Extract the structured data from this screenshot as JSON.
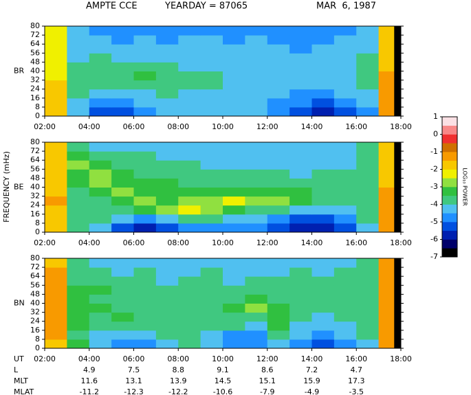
{
  "header": {
    "mission": "AMPTE CCE",
    "yearday": "YEARDAY = 87065",
    "date": "MAR  6, 1987"
  },
  "ylabel": "FREQUENCY (mHz)",
  "chart_data": [
    {
      "type": "heatmap",
      "label": "BR",
      "xlim": [
        2,
        18
      ],
      "ylim": [
        0,
        80
      ],
      "xticks": [
        {
          "value": 2,
          "label": "02:00"
        },
        {
          "value": 4,
          "label": "04:00"
        },
        {
          "value": 6,
          "label": "06:00"
        },
        {
          "value": 8,
          "label": "08:00"
        },
        {
          "value": 10,
          "label": "10:00"
        },
        {
          "value": 12,
          "label": "12:00"
        },
        {
          "value": 14,
          "label": "14:00"
        },
        {
          "value": 16,
          "label": "16:00"
        },
        {
          "value": 18,
          "label": "18:00"
        }
      ],
      "yticks": [
        0,
        8,
        16,
        24,
        32,
        40,
        48,
        56,
        64,
        72,
        80
      ],
      "z": [
        [
          -2,
          -4.5,
          -5.5,
          -5.5,
          -5,
          -4.5,
          -4.5,
          -4.5,
          -4.5,
          -4.5,
          -5,
          -5.5,
          -6,
          -5.5,
          -5,
          -1.5
        ],
        [
          -2,
          -4.5,
          -5,
          -5,
          -4.5,
          -4.5,
          -4.5,
          -4.5,
          -4.5,
          -4.5,
          -5,
          -5,
          -5.5,
          -5,
          -4.5,
          -1.5
        ],
        [
          -2,
          -4,
          -4.5,
          -4.5,
          -4.5,
          -4,
          -4.5,
          -4.5,
          -4.5,
          -4.5,
          -4.5,
          -5,
          -5,
          -4.5,
          -4.5,
          -1.5
        ],
        [
          -2,
          -4,
          -4,
          -4,
          -4,
          -4,
          -4,
          -4,
          -4.5,
          -4.5,
          -4.5,
          -4.5,
          -4.5,
          -4.5,
          -4,
          -1.5
        ],
        [
          -2.5,
          -4,
          -4,
          -4,
          -3.5,
          -4,
          -4,
          -4,
          -4.5,
          -4.5,
          -4.5,
          -4.5,
          -4.5,
          -4.5,
          -4,
          -1.5
        ],
        [
          -2.5,
          -4,
          -4,
          -4,
          -4,
          -4,
          -4.5,
          -4.5,
          -4.5,
          -4.5,
          -4.5,
          -4.5,
          -4.5,
          -4.5,
          -4,
          -2
        ],
        [
          -2.5,
          -4.5,
          -4,
          -4.5,
          -4.5,
          -4.5,
          -4.5,
          -4.5,
          -4.5,
          -4.5,
          -4.5,
          -4.5,
          -4.5,
          -4.5,
          -4,
          -2
        ],
        [
          -2.5,
          -4.5,
          -4.5,
          -4.5,
          -4.5,
          -4.5,
          -4.5,
          -4.5,
          -4.5,
          -4.5,
          -4.5,
          -5,
          -4.5,
          -4.5,
          -4.5,
          -2
        ],
        [
          -2.5,
          -4.5,
          -4.5,
          -5,
          -4.5,
          -5,
          -4.5,
          -4.5,
          -5,
          -4.5,
          -5,
          -5,
          -5,
          -4.5,
          -4.5,
          -2
        ],
        [
          -2.5,
          -4.5,
          -5,
          -5,
          -5,
          -5,
          -5,
          -5,
          -5,
          -5,
          -5,
          -5,
          -5,
          -5,
          -4.5,
          -2
        ]
      ]
    },
    {
      "type": "heatmap",
      "label": "BE",
      "xlim": [
        2,
        18
      ],
      "ylim": [
        0,
        80
      ],
      "xticks": [
        {
          "value": 2,
          "label": "02:00"
        },
        {
          "value": 4,
          "label": "04:00"
        },
        {
          "value": 6,
          "label": "06:00"
        },
        {
          "value": 8,
          "label": "08:00"
        },
        {
          "value": 10,
          "label": "10:00"
        },
        {
          "value": 12,
          "label": "12:00"
        },
        {
          "value": 14,
          "label": "14:00"
        },
        {
          "value": 16,
          "label": "16:00"
        },
        {
          "value": 18,
          "label": "18:00"
        }
      ],
      "yticks": [
        0,
        8,
        16,
        24,
        32,
        40,
        48,
        56,
        64,
        72,
        80
      ],
      "z": [
        [
          -2,
          -4,
          -4.5,
          -5.5,
          -6,
          -5.5,
          -5,
          -5,
          -5,
          -5,
          -5.5,
          -6,
          -6,
          -5.5,
          -4.5,
          -1.5
        ],
        [
          -2,
          -4,
          -4,
          -4.5,
          -5,
          -4.5,
          -4,
          -4,
          -4.5,
          -4.5,
          -5,
          -5.5,
          -5.5,
          -5,
          -4,
          -1.5
        ],
        [
          -2,
          -4,
          -4,
          -4,
          -3.5,
          -3,
          -2.5,
          -3,
          -3.5,
          -4,
          -4,
          -4.5,
          -4.5,
          -4.5,
          -4,
          -1.5
        ],
        [
          -1.5,
          -4,
          -4,
          -3.5,
          -3,
          -3.5,
          -3,
          -3,
          -2.5,
          -3,
          -3,
          -3.5,
          -4,
          -4,
          -4,
          -1.5
        ],
        [
          -2,
          -4,
          -3.5,
          -3,
          -3.5,
          -3.5,
          -3.5,
          -3.5,
          -3.5,
          -3.5,
          -3.5,
          -3.5,
          -4,
          -4,
          -4,
          -1.5
        ],
        [
          -2,
          -3.5,
          -3,
          -3.5,
          -3.5,
          -3.5,
          -4,
          -4,
          -4,
          -4,
          -4,
          -4,
          -4,
          -4,
          -4,
          -2
        ],
        [
          -2,
          -3.5,
          -3,
          -3.5,
          -4,
          -4,
          -4,
          -4,
          -4,
          -4,
          -4,
          -4.5,
          -4,
          -4,
          -4,
          -2
        ],
        [
          -2,
          -3,
          -3.5,
          -4,
          -4,
          -4,
          -4,
          -4.5,
          -4.5,
          -4.5,
          -4.5,
          -4.5,
          -4.5,
          -4.5,
          -4,
          -2
        ],
        [
          -2,
          -3.5,
          -4,
          -4,
          -4,
          -4.5,
          -4.5,
          -4.5,
          -4.5,
          -4.5,
          -4.5,
          -4.5,
          -4.5,
          -4.5,
          -4,
          -2
        ],
        [
          -2,
          -4,
          -4.5,
          -4.5,
          -4.5,
          -4.5,
          -4.5,
          -4.5,
          -4.5,
          -4.5,
          -4.5,
          -4.5,
          -4.5,
          -4.5,
          -4,
          -2
        ]
      ]
    },
    {
      "type": "heatmap",
      "label": "BN",
      "xlim": [
        2,
        18
      ],
      "ylim": [
        0,
        80
      ],
      "xticks": [
        {
          "value": 2,
          "label": "02:00"
        },
        {
          "value": 4,
          "label": "04:00"
        },
        {
          "value": 6,
          "label": "06:00"
        },
        {
          "value": 8,
          "label": "08:00"
        },
        {
          "value": 10,
          "label": "10:00"
        },
        {
          "value": 12,
          "label": "12:00"
        },
        {
          "value": 14,
          "label": "14:00"
        },
        {
          "value": 16,
          "label": "16:00"
        },
        {
          "value": 18,
          "label": "18:00"
        }
      ],
      "yticks": [
        0,
        8,
        16,
        24,
        32,
        40,
        48,
        56,
        64,
        72,
        80
      ],
      "z": [
        [
          -2,
          -3.5,
          -4.5,
          -5,
          -5,
          -4.5,
          -4,
          -4.5,
          -5,
          -5,
          -4.5,
          -5,
          -5.5,
          -5,
          -4.5,
          -1.5
        ],
        [
          -1.5,
          -4,
          -4.5,
          -4.5,
          -4.5,
          -4,
          -4,
          -4.5,
          -5,
          -5,
          -4,
          -4.5,
          -5,
          -4.5,
          -4,
          -1.5
        ],
        [
          -1.5,
          -3.5,
          -4,
          -4,
          -4,
          -4,
          -4,
          -4,
          -4,
          -4.5,
          -3.5,
          -4.5,
          -4.5,
          -4.5,
          -4,
          -1.5
        ],
        [
          -1.5,
          -3.5,
          -4,
          -3.5,
          -4,
          -4,
          -4,
          -4,
          -4,
          -4,
          -3.5,
          -4,
          -4.5,
          -4,
          -4,
          -1.5
        ],
        [
          -1.5,
          -3.5,
          -3.5,
          -4,
          -4,
          -4,
          -4,
          -4,
          -3.5,
          -3,
          -3.5,
          -4,
          -4,
          -4,
          -4,
          -1.5
        ],
        [
          -1.5,
          -3.5,
          -4,
          -4,
          -4,
          -4,
          -4,
          -4,
          -4,
          -3.5,
          -4,
          -4,
          -4,
          -4,
          -4,
          -1.5
        ],
        [
          -1.5,
          -3.5,
          -3.5,
          -4,
          -4,
          -4,
          -4,
          -4,
          -4,
          -4,
          -4,
          -4,
          -4,
          -4,
          -4,
          -1.5
        ],
        [
          -1.5,
          -4,
          -4,
          -4,
          -4,
          -4.5,
          -4,
          -4,
          -4.5,
          -4,
          -4,
          -4,
          -4,
          -4,
          -4,
          -1.5
        ],
        [
          -1.5,
          -4,
          -4,
          -4.5,
          -4,
          -4.5,
          -4.5,
          -4,
          -4.5,
          -4.5,
          -4.5,
          -4,
          -4.5,
          -4,
          -4,
          -1.5
        ],
        [
          -2,
          -4,
          -4.5,
          -4.5,
          -4.5,
          -4.5,
          -4.5,
          -4.5,
          -4.5,
          -4.5,
          -4.5,
          -4.5,
          -4.5,
          -4.5,
          -4,
          -1.5
        ]
      ]
    }
  ],
  "colorbar": {
    "label": "LOG₁₀ POWER",
    "clim": [
      -7,
      1
    ],
    "ticks": [
      -7,
      -6,
      -5,
      -4,
      -3,
      -2,
      -1,
      0,
      1
    ],
    "colors": [
      "#000000",
      "#00006a",
      "#0020b0",
      "#0050e0",
      "#2090ff",
      "#50c0f0",
      "#40c880",
      "#30c040",
      "#90e040",
      "#f0f000",
      "#f8c800",
      "#f89a00",
      "#d07000",
      "#f03030",
      "#f88888",
      "#fbe0e4"
    ]
  },
  "ephemeris": {
    "ut_label": "UT",
    "x": [
      4,
      6,
      8,
      10,
      12,
      14,
      16
    ],
    "rows": [
      {
        "label": "L",
        "values": [
          4.9,
          7.5,
          8.8,
          9.1,
          8.6,
          7.2,
          4.7
        ]
      },
      {
        "label": "MLT",
        "values": [
          11.6,
          13.1,
          13.9,
          14.5,
          15.1,
          15.9,
          17.3
        ]
      },
      {
        "label": "MLAT",
        "values": [
          -11.2,
          -12.3,
          -12.2,
          -10.6,
          -7.9,
          -4.9,
          -3.5
        ]
      }
    ]
  }
}
